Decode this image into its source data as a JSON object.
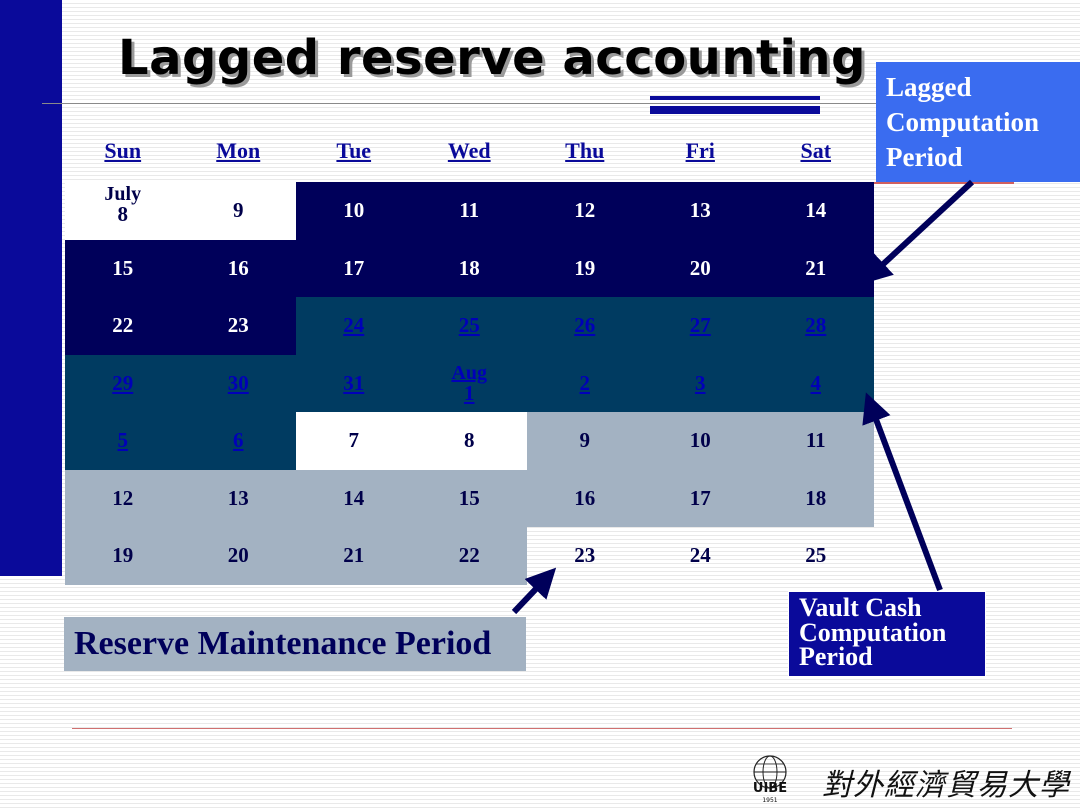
{
  "slide": {
    "title": "Lagged reserve accounting"
  },
  "calendar": {
    "headers": [
      "Sun",
      "Mon",
      "Tue",
      "Wed",
      "Thu",
      "Fri",
      "Sat"
    ],
    "rows": [
      [
        {
          "month": "July",
          "day": "8",
          "style": "white"
        },
        {
          "day": "9",
          "style": "white"
        },
        {
          "day": "10",
          "style": "navy"
        },
        {
          "day": "11",
          "style": "navy"
        },
        {
          "day": "12",
          "style": "navy"
        },
        {
          "day": "13",
          "style": "navy"
        },
        {
          "day": "14",
          "style": "navy"
        }
      ],
      [
        {
          "day": "15",
          "style": "navy"
        },
        {
          "day": "16",
          "style": "navy"
        },
        {
          "day": "17",
          "style": "navy"
        },
        {
          "day": "18",
          "style": "navy"
        },
        {
          "day": "19",
          "style": "navy"
        },
        {
          "day": "20",
          "style": "navy"
        },
        {
          "day": "21",
          "style": "navy"
        }
      ],
      [
        {
          "day": "22",
          "style": "navy"
        },
        {
          "day": "23",
          "style": "navy"
        },
        {
          "day": "24",
          "style": "teal"
        },
        {
          "day": "25",
          "style": "teal"
        },
        {
          "day": "26",
          "style": "teal"
        },
        {
          "day": "27",
          "style": "teal"
        },
        {
          "day": "28",
          "style": "teal"
        }
      ],
      [
        {
          "day": "29",
          "style": "teal"
        },
        {
          "day": "30",
          "style": "teal"
        },
        {
          "day": "31",
          "style": "teal"
        },
        {
          "month": "Aug",
          "day": "1",
          "style": "teal"
        },
        {
          "day": "2",
          "style": "teal"
        },
        {
          "day": "3",
          "style": "teal"
        },
        {
          "day": "4",
          "style": "teal"
        }
      ],
      [
        {
          "day": "5",
          "style": "teal"
        },
        {
          "day": "6",
          "style": "teal"
        },
        {
          "day": "7",
          "style": "white"
        },
        {
          "day": "8",
          "style": "white"
        },
        {
          "day": "9",
          "style": "gray"
        },
        {
          "day": "10",
          "style": "gray"
        },
        {
          "day": "11",
          "style": "gray"
        }
      ],
      [
        {
          "day": "12",
          "style": "gray"
        },
        {
          "day": "13",
          "style": "gray"
        },
        {
          "day": "14",
          "style": "gray"
        },
        {
          "day": "15",
          "style": "gray"
        },
        {
          "day": "16",
          "style": "gray"
        },
        {
          "day": "17",
          "style": "gray"
        },
        {
          "day": "18",
          "style": "gray"
        }
      ],
      [
        {
          "day": "19",
          "style": "gray"
        },
        {
          "day": "20",
          "style": "gray"
        },
        {
          "day": "21",
          "style": "gray"
        },
        {
          "day": "22",
          "style": "gray"
        },
        {
          "day": "23",
          "style": "clear"
        },
        {
          "day": "24",
          "style": "clear"
        },
        {
          "day": "25",
          "style": "clear"
        }
      ]
    ]
  },
  "callouts": {
    "lagged_computation_period": [
      "Lagged",
      "Computation",
      "Period"
    ],
    "vault_cash_computation_period": [
      "Vault Cash",
      "Computation",
      "Period"
    ],
    "reserve_maintenance_period": "Reserve Maintenance Period"
  },
  "colors": {
    "lagged_computation": "#00005a",
    "vault_cash_computation": "#003b61",
    "reserve_maintenance": "#a3b2c2",
    "accent": "#0a0a9a"
  },
  "logo": {
    "icon": "university-globe-logo",
    "text": "對外經濟貿易大學",
    "abbr": "UIBE",
    "year": "1951"
  }
}
